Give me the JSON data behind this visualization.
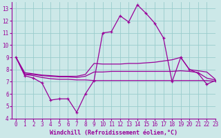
{
  "x": [
    0,
    1,
    2,
    3,
    4,
    5,
    6,
    7,
    8,
    9,
    10,
    11,
    12,
    13,
    14,
    15,
    16,
    17,
    18,
    19,
    20,
    21,
    22,
    23
  ],
  "main_line": [
    9.0,
    7.5,
    7.3,
    6.9,
    5.5,
    5.6,
    5.6,
    4.5,
    6.0,
    7.1,
    11.0,
    11.1,
    12.4,
    11.9,
    13.3,
    12.6,
    11.8,
    10.6,
    7.0,
    9.0,
    8.0,
    7.7,
    6.8,
    7.1
  ],
  "upper_line": [
    9.0,
    7.75,
    7.65,
    7.55,
    7.5,
    7.45,
    7.45,
    7.45,
    7.6,
    8.5,
    8.45,
    8.45,
    8.45,
    8.5,
    8.5,
    8.55,
    8.6,
    8.7,
    8.8,
    9.0,
    8.0,
    7.9,
    7.8,
    7.2
  ],
  "middle_line": [
    9.0,
    7.65,
    7.6,
    7.5,
    7.45,
    7.4,
    7.4,
    7.35,
    7.45,
    7.8,
    7.8,
    7.85,
    7.85,
    7.85,
    7.85,
    7.85,
    7.85,
    7.85,
    7.85,
    7.9,
    7.85,
    7.75,
    7.3,
    7.15
  ],
  "lower_line": [
    9.0,
    7.6,
    7.5,
    7.35,
    7.25,
    7.2,
    7.2,
    7.15,
    7.15,
    7.1,
    7.1,
    7.1,
    7.1,
    7.1,
    7.1,
    7.1,
    7.1,
    7.1,
    7.1,
    7.1,
    7.1,
    7.1,
    7.1,
    7.05
  ],
  "line_color": "#990099",
  "bg_color": "#cce8e8",
  "grid_color": "#99cccc",
  "xlabel": "Windchill (Refroidissement éolien,°C)",
  "ylim": [
    4,
    13.5
  ],
  "xlim": [
    -0.5,
    23
  ],
  "yticks": [
    4,
    5,
    6,
    7,
    8,
    9,
    10,
    11,
    12,
    13
  ],
  "xticks": [
    0,
    1,
    2,
    3,
    4,
    5,
    6,
    7,
    8,
    9,
    10,
    11,
    12,
    13,
    14,
    15,
    16,
    17,
    18,
    19,
    20,
    21,
    22,
    23
  ]
}
